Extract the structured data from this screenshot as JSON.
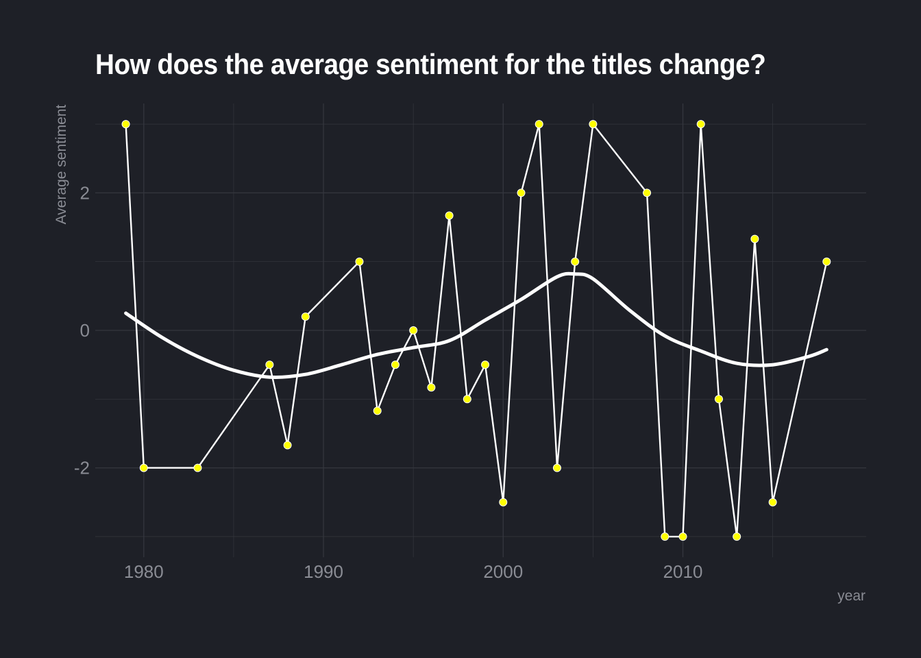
{
  "chart_data": {
    "type": "line",
    "title": "How does the average sentiment for the titles change?",
    "xlabel": "year",
    "ylabel": "Average sentiment",
    "xlim": [
      1977.3,
      2020.2
    ],
    "ylim": [
      -3.3,
      3.3
    ],
    "x_ticks": [
      1980,
      1990,
      2000,
      2010
    ],
    "x_tick_labels": [
      "1980",
      "1990",
      "2000",
      "2010"
    ],
    "y_ticks": [
      -2,
      0,
      2
    ],
    "y_tick_labels": [
      "-2",
      "0",
      "2"
    ],
    "grid": true,
    "series": [
      {
        "values_x": [
          1979,
          1980,
          1983,
          1987,
          1988,
          1989,
          1992,
          1993,
          1994,
          1995,
          1996,
          1997,
          1998,
          1999,
          2000,
          2001,
          2002,
          2003,
          2004,
          2005,
          2008,
          2009,
          2010,
          2011,
          2012,
          2013,
          2014,
          2015,
          2018
        ],
        "values_y": [
          3,
          -2,
          -2,
          -0.5,
          -1.67,
          0.2,
          1,
          -1.17,
          -0.5,
          0,
          -0.83,
          1.67,
          -1,
          -0.5,
          -2.5,
          2,
          3,
          -2,
          1,
          3,
          2,
          -3,
          -3,
          3,
          -1,
          -3,
          1.33,
          -2.5,
          1
        ]
      },
      {
        "values_x": [
          1979,
          1981,
          1983,
          1985,
          1987,
          1989,
          1991,
          1993,
          1995,
          1997,
          1999,
          2001,
          2003,
          2004,
          2005,
          2007,
          2009,
          2011,
          2013,
          2015,
          2017,
          2018
        ],
        "values_y": [
          0.25,
          -0.1,
          -0.38,
          -0.58,
          -0.68,
          -0.64,
          -0.5,
          -0.35,
          -0.25,
          -0.15,
          0.15,
          0.45,
          0.78,
          0.82,
          0.75,
          0.3,
          -0.08,
          -0.3,
          -0.48,
          -0.5,
          -0.38,
          -0.28
        ]
      }
    ],
    "colors": {
      "background": "#1e2027",
      "grid": "#34363e",
      "line": "#ffffff",
      "points": "#ffff00",
      "text": "#8a8c94",
      "title": "#ffffff"
    }
  }
}
